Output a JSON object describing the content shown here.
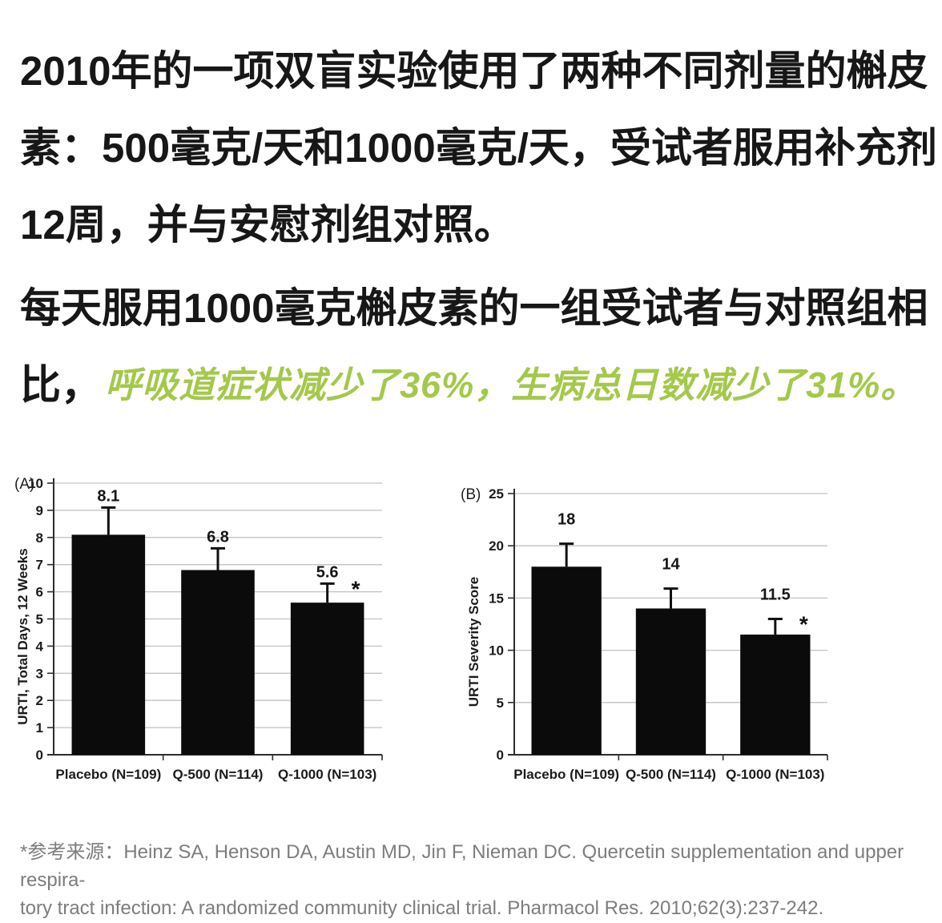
{
  "intro": {
    "lines": [
      "2010年的一项双盲实验使用了两种不同剂量的槲皮",
      "素：500毫克/天和1000毫克/天，受试者服用补充剂",
      "12周，并与安慰剂组对照。",
      "每天服用1000毫克槲皮素的一组受试者与对照组相"
    ],
    "line5_prefix": "比，",
    "line5_highlight": "呼吸道症状减少了36%，生病总日数减少了31%。"
  },
  "colors": {
    "highlight_green": "#A3C94A",
    "bar_black": "#0B0B0B",
    "footnote_gray": "#7D7D7D",
    "grid_gray": "#C2C2C2",
    "axis_dark": "#2E2E2E"
  },
  "footnote": {
    "line1": "*参考来源：Heinz SA, Henson DA, Austin MD, Jin F, Nieman DC. Quercetin supplementation and upper respira-",
    "line2": "tory tract infection: A randomized community clinical trial. Pharmacol Res. 2010;62(3):237-242."
  },
  "chart_data": [
    {
      "id": "A",
      "type": "bar",
      "panel_label": "(A)",
      "categories": [
        "Placebo (N=109)",
        "Q-500 (N=114)",
        "Q-1000 (N=103)"
      ],
      "values": [
        8.1,
        6.8,
        5.6
      ],
      "errors_upper": [
        1.0,
        0.8,
        0.7
      ],
      "data_labels": [
        "8.1",
        "6.8",
        "5.6"
      ],
      "significance": [
        null,
        null,
        "*"
      ],
      "ylabel": "URTI, Total Days, 12 Weeks",
      "xlabel": "",
      "ylim": [
        0,
        10
      ],
      "ytick_step": 1,
      "grid": true,
      "legend": "none",
      "bar_color": "#0B0B0B"
    },
    {
      "id": "B",
      "type": "bar",
      "panel_label": "(B)",
      "categories": [
        "Placebo (N=109)",
        "Q-500 (N=114)",
        "Q-1000 (N=103)"
      ],
      "values": [
        18,
        14,
        11.5
      ],
      "errors_upper": [
        2.2,
        1.9,
        1.5
      ],
      "data_labels": [
        "18",
        "14",
        "11.5"
      ],
      "significance": [
        null,
        null,
        "*"
      ],
      "ylabel": "URTI Severity Score",
      "xlabel": "",
      "ylim": [
        0,
        25
      ],
      "ytick_step": 5,
      "grid": true,
      "legend": "none",
      "bar_color": "#0B0B0B"
    }
  ]
}
